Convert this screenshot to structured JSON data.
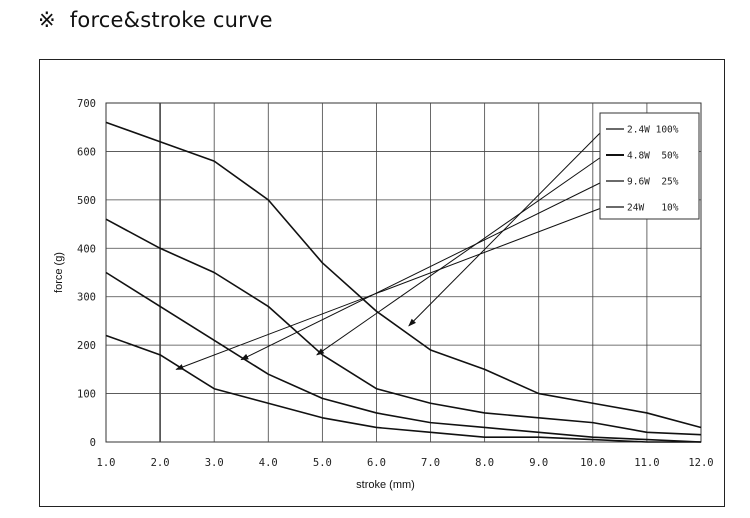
{
  "header": {
    "mark": "※",
    "title": "force&stroke curve"
  },
  "chart_data": {
    "type": "line",
    "xlabel": "stroke (mm)",
    "ylabel": "force (g)",
    "xlim": [
      1.0,
      12.0
    ],
    "ylim": [
      0,
      700
    ],
    "x_ticks": [
      "1.0",
      "2.0",
      "3.0",
      "4.0",
      "5.0",
      "6.0",
      "7.0",
      "8.0",
      "9.0",
      "10.0",
      "11.0",
      "12.0"
    ],
    "y_ticks": [
      "0",
      "100",
      "200",
      "300",
      "400",
      "500",
      "600",
      "700"
    ],
    "grid": true,
    "legend_position": "top-right",
    "series": [
      {
        "name": "2.4W 100%",
        "x": [
          1.0,
          2.0,
          3.0,
          4.0,
          5.0,
          6.0,
          7.0,
          8.0,
          9.0,
          10.0,
          11.0,
          12.0
        ],
        "values": [
          660,
          620,
          580,
          500,
          370,
          270,
          190,
          150,
          100,
          80,
          60,
          30
        ]
      },
      {
        "name": "4.8W  50%",
        "x": [
          1.0,
          2.0,
          3.0,
          4.0,
          5.0,
          6.0,
          7.0,
          8.0,
          9.0,
          10.0,
          11.0,
          12.0
        ],
        "values": [
          460,
          400,
          350,
          280,
          180,
          110,
          80,
          60,
          50,
          40,
          20,
          15
        ]
      },
      {
        "name": "9.6W  25%",
        "x": [
          1.0,
          2.0,
          3.0,
          4.0,
          5.0,
          6.0,
          7.0,
          8.0,
          9.0,
          10.0,
          11.0,
          12.0
        ],
        "values": [
          350,
          280,
          210,
          140,
          90,
          60,
          40,
          30,
          20,
          10,
          5,
          0
        ]
      },
      {
        "name": "24W   10%",
        "x": [
          1.0,
          2.0,
          3.0,
          4.0,
          5.0,
          6.0,
          7.0,
          8.0,
          9.0,
          10.0,
          11.0,
          12.0
        ],
        "values": [
          220,
          180,
          110,
          80,
          50,
          30,
          20,
          10,
          10,
          5,
          0,
          0
        ]
      }
    ],
    "callout_targets": [
      {
        "x": 6.6,
        "y": 240
      },
      {
        "x": 4.9,
        "y": 180
      },
      {
        "x": 3.5,
        "y": 170
      },
      {
        "x": 2.3,
        "y": 150
      }
    ]
  }
}
